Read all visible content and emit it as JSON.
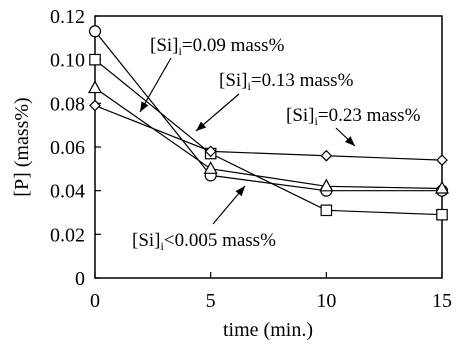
{
  "chart_data": {
    "type": "line",
    "xlabel": "time (min.)",
    "ylabel": "[P] (mass%)",
    "xlim": [
      0,
      15
    ],
    "ylim": [
      0,
      0.12
    ],
    "xticks": [
      "0",
      "5",
      "10",
      "15"
    ],
    "yticks": [
      "0",
      "0.02",
      "0.04",
      "0.06",
      "0.08",
      "0.10",
      "0.12"
    ],
    "grid": false,
    "x": [
      0,
      5,
      10,
      15
    ],
    "series": [
      {
        "marker": "circle",
        "values": [
          0.113,
          0.047,
          0.04,
          0.04
        ]
      },
      {
        "marker": "square",
        "values": [
          0.1,
          0.057,
          0.031,
          0.029
        ]
      },
      {
        "marker": "triangle",
        "values": [
          0.087,
          0.05,
          0.042,
          0.041
        ]
      },
      {
        "marker": "diamond",
        "values": [
          0.079,
          0.058,
          0.056,
          0.054
        ]
      }
    ],
    "annotations": [
      {
        "base": "[Si]",
        "sub": "i",
        "op": "=",
        "rest": "0.09 mass%"
      },
      {
        "base": "[Si]",
        "sub": "i",
        "op": "=",
        "rest": "0.13 mass%"
      },
      {
        "base": "[Si]",
        "sub": "i",
        "op": "=",
        "rest": "0.23 mass%"
      },
      {
        "base": "[Si]",
        "sub": "i",
        "op": "<",
        "rest": "0.005 mass%"
      }
    ]
  }
}
